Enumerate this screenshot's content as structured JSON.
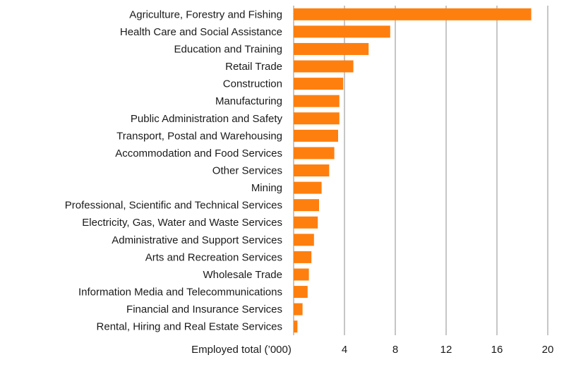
{
  "chart_data": {
    "type": "bar",
    "orientation": "horizontal",
    "categories": [
      "Agriculture, Forestry and Fishing",
      "Health Care and Social Assistance",
      "Education and Training",
      "Retail Trade",
      "Construction",
      "Manufacturing",
      "Public Administration and Safety",
      "Transport, Postal and Warehousing",
      "Accommodation and Food Services",
      "Other Services",
      "Mining",
      "Professional, Scientific and Technical Services",
      "Electricity, Gas, Water and Waste Services",
      "Administrative and Support Services",
      "Arts and Recreation Services",
      "Wholesale Trade",
      "Information Media and Telecommunications",
      "Financial and Insurance Services",
      "Rental, Hiring and Real Estate Services"
    ],
    "values": [
      18.7,
      7.6,
      5.9,
      4.7,
      3.9,
      3.6,
      3.6,
      3.5,
      3.2,
      2.8,
      2.2,
      2.0,
      1.9,
      1.6,
      1.4,
      1.2,
      1.1,
      0.7,
      0.3
    ],
    "title": "",
    "xlabel": "Employed total (’000)",
    "ylabel": "",
    "xlim": [
      0,
      20
    ],
    "xticks": [
      4,
      8,
      12,
      16,
      20
    ],
    "grid": "vertical",
    "bar_color": "#FF7F0E",
    "grid_color": "#8C8C8C",
    "axis_color": "#8C8C8C"
  }
}
